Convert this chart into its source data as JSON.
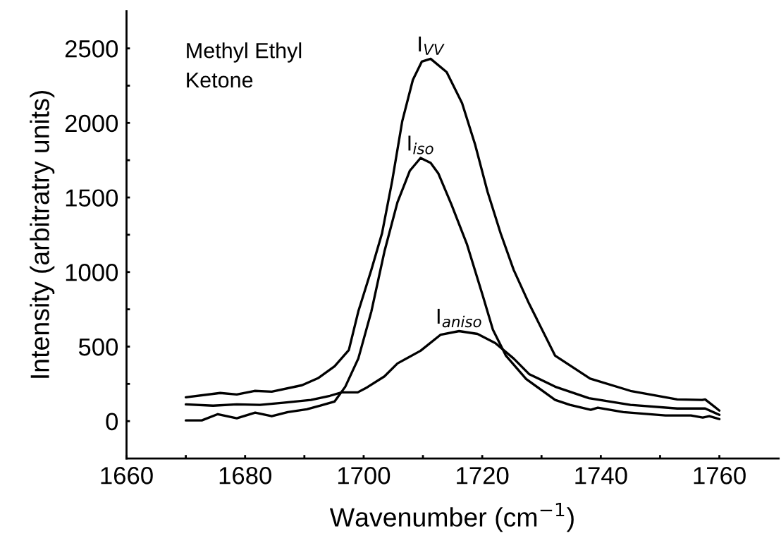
{
  "chart_data": {
    "type": "line",
    "xlabel": "Wavenumber (cm$^{−1}$)",
    "ylabel": "Intensity (arbitratry units)",
    "annotations": [
      "Methyl Ethyl\nKetone"
    ],
    "xlim": [
      1660,
      1770
    ],
    "ylim": [
      -250,
      2750
    ],
    "xticks": [
      1660,
      {
        "value": 1670,
        "label": null
      },
      1680,
      {
        "value": 1690,
        "label": null
      },
      1700,
      {
        "value": 1710,
        "label": null
      },
      1720,
      {
        "value": 1730,
        "label": null
      },
      1740,
      {
        "value": 1750,
        "label": null
      },
      1760
    ],
    "yticks": [
      0,
      {
        "value": 250,
        "label": null
      },
      500,
      {
        "value": 750,
        "label": null
      },
      1000,
      {
        "value": 1250,
        "label": null
      },
      1500,
      {
        "value": 1750,
        "label": null
      },
      2000,
      {
        "value": 2250,
        "label": null
      },
      2500
    ],
    "grid": false,
    "legend": false,
    "marker": "none",
    "line_style": "solid",
    "series": [
      {
        "name": "I$_{VV}$",
        "color": "#000000",
        "x": [
          1670,
          1675.8,
          1678.6,
          1681.6,
          1684.5,
          1689.6,
          1692.3,
          1695.1,
          1697.5,
          1699.1,
          1701.3,
          1703.1,
          1704.8,
          1706.5,
          1708.3,
          1709.8,
          1711.3,
          1714,
          1716.6,
          1718.8,
          1720.9,
          1723.1,
          1725.3,
          1727.9,
          1732.3,
          1738.2,
          1745,
          1752.9,
          1757.1,
          1757.6,
          1760
        ],
        "values": [
          160,
          189,
          179,
          203,
          198,
          241,
          288,
          368,
          477,
          736,
          1015,
          1260,
          1609,
          2010,
          2289,
          2411,
          2430,
          2341,
          2133,
          1855,
          1538,
          1260,
          1015,
          788,
          439,
          285,
          203,
          146,
          142,
          146,
          71
        ]
      },
      {
        "name": "I$_{iso}$",
        "color": "#000000",
        "x": [
          1670,
          1672.7,
          1675.4,
          1678.6,
          1681.7,
          1684.5,
          1687.2,
          1690.4,
          1692.7,
          1695.1,
          1696.9,
          1699.1,
          1701.3,
          1703.5,
          1705.7,
          1707.8,
          1709.6,
          1711.3,
          1712.6,
          1714.8,
          1717.4,
          1720.1,
          1721.8,
          1724,
          1727.4,
          1732.3,
          1734.8,
          1738.3,
          1739.5,
          1743.8,
          1750.9,
          1755.2,
          1757.2,
          1758.3,
          1760
        ],
        "values": [
          5,
          5,
          47,
          19,
          57,
          33,
          61,
          80,
          104,
          132,
          231,
          420,
          736,
          1137,
          1468,
          1680,
          1765,
          1732,
          1661,
          1453,
          1189,
          840,
          613,
          439,
          283,
          142,
          109,
          76,
          90,
          61,
          38,
          38,
          24,
          33,
          14
        ]
      },
      {
        "name": "I$_{aniso}$",
        "color": "#000000",
        "x": [
          1670,
          1674.6,
          1678.6,
          1682.5,
          1686.4,
          1691.1,
          1694.3,
          1696.3,
          1699,
          1700.6,
          1703.5,
          1705.7,
          1709.6,
          1713,
          1716.1,
          1719.2,
          1722.2,
          1725.3,
          1727.9,
          1732.3,
          1738,
          1745,
          1752.9,
          1757.6,
          1760
        ],
        "values": [
          113,
          104,
          113,
          109,
          123,
          142,
          170,
          193,
          193,
          227,
          300,
          387,
          472,
          580,
          604,
          585,
          524,
          420,
          316,
          231,
          154,
          109,
          85,
          85,
          42
        ]
      }
    ]
  }
}
